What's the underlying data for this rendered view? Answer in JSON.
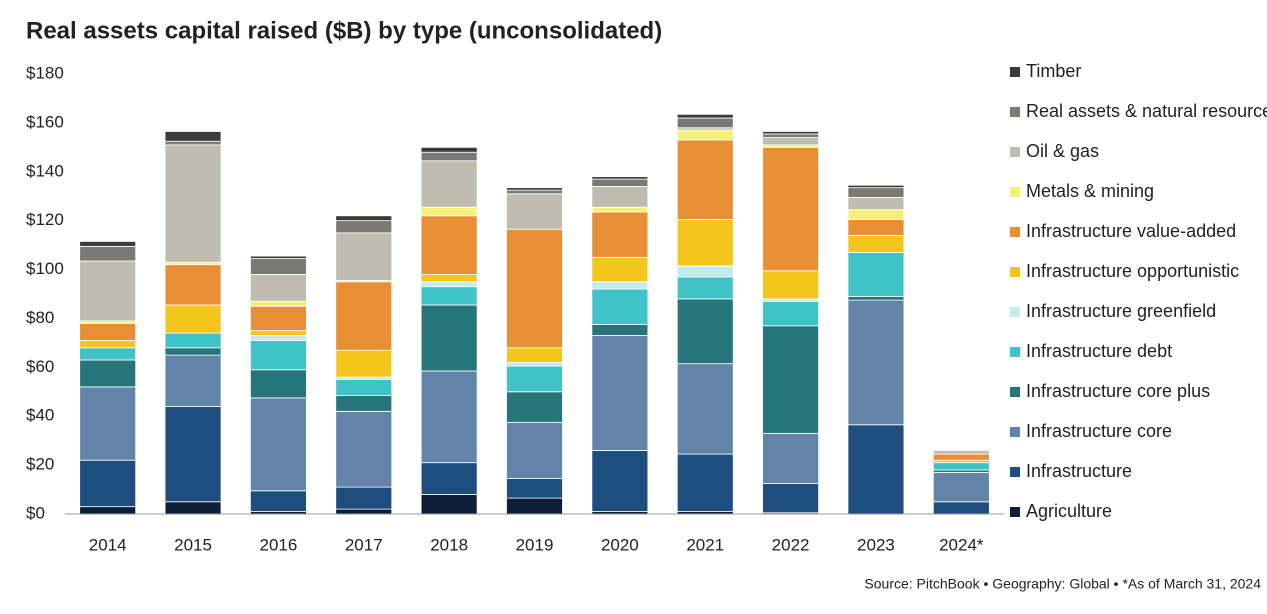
{
  "chart_data": {
    "type": "stacked_bar",
    "title": "Real assets capital raised ($B) by type (unconsolidated)",
    "source": "Source: PitchBook • Geography: Global • *As of March 31, 2024",
    "categories": [
      "2014",
      "2015",
      "2016",
      "2017",
      "2018",
      "2019",
      "2020",
      "2021",
      "2022",
      "2023",
      "2024*"
    ],
    "ylim": [
      0,
      180
    ],
    "yticks": [
      {
        "value": 0,
        "label": "$0"
      },
      {
        "value": 20,
        "label": "$20"
      },
      {
        "value": 40,
        "label": "$40"
      },
      {
        "value": 60,
        "label": "$60"
      },
      {
        "value": 80,
        "label": "$80"
      },
      {
        "value": 100,
        "label": "$100"
      },
      {
        "value": 120,
        "label": "$120"
      },
      {
        "value": 140,
        "label": "$140"
      },
      {
        "value": 160,
        "label": "$160"
      },
      {
        "value": 180,
        "label": "$180"
      }
    ],
    "grid": false,
    "series": [
      {
        "name": "Agriculture",
        "color": "#0f1e38",
        "values": [
          3,
          5,
          1,
          2,
          8,
          6.5,
          1,
          1,
          0.5,
          0,
          0
        ]
      },
      {
        "name": "Infrastructure",
        "color": "#1e4e80",
        "values": [
          19,
          39,
          8.5,
          9,
          13,
          8,
          25,
          23.5,
          12,
          36.5,
          5
        ]
      },
      {
        "name": "Infrastructure core",
        "color": "#6384a9",
        "values": [
          30,
          21,
          38,
          31,
          37.5,
          23,
          47,
          37,
          20.5,
          51,
          12
        ]
      },
      {
        "name": "Infrastructure core plus",
        "color": "#25757a",
        "values": [
          11,
          3,
          11.5,
          6.5,
          27,
          12.5,
          4.5,
          26.5,
          44,
          1.5,
          1
        ]
      },
      {
        "name": "Infrastructure debt",
        "color": "#3fc3c8",
        "values": [
          5,
          6,
          12,
          6.5,
          7.5,
          10.5,
          14.5,
          9,
          10,
          18,
          3
        ]
      },
      {
        "name": "Infrastructure greenfield",
        "color": "#c3ebea",
        "values": [
          0,
          0,
          2,
          1,
          2,
          1.5,
          3,
          4.5,
          1,
          0,
          0
        ]
      },
      {
        "name": "Infrastructure opportunistic",
        "color": "#f4c51a",
        "values": [
          3,
          11.5,
          2,
          11,
          3,
          6,
          10,
          19,
          11.5,
          7,
          1
        ]
      },
      {
        "name": "Infrastructure value-added",
        "color": "#e88e34",
        "values": [
          7,
          16.5,
          10,
          28,
          24,
          48.5,
          18.5,
          32.5,
          50.5,
          6.5,
          2.5
        ]
      },
      {
        "name": "Metals & mining",
        "color": "#f5f078",
        "values": [
          1,
          1,
          2,
          0.5,
          3.5,
          0,
          2,
          4,
          1,
          4,
          0
        ]
      },
      {
        "name": "Oil & gas",
        "color": "#c0bcb0",
        "values": [
          24.5,
          48,
          11,
          19.5,
          19,
          14.5,
          8.5,
          1,
          3,
          5,
          1.5
        ]
      },
      {
        "name": "Real assets & natural resources",
        "color": "#7a7a72",
        "values": [
          6,
          1.5,
          6.5,
          5,
          3.5,
          1.5,
          3,
          4,
          1.5,
          4,
          0
        ]
      },
      {
        "name": "Timber",
        "color": "#3a3a3a",
        "values": [
          2,
          4,
          1,
          2,
          2,
          1,
          1,
          1.5,
          1,
          1,
          0
        ]
      }
    ]
  }
}
